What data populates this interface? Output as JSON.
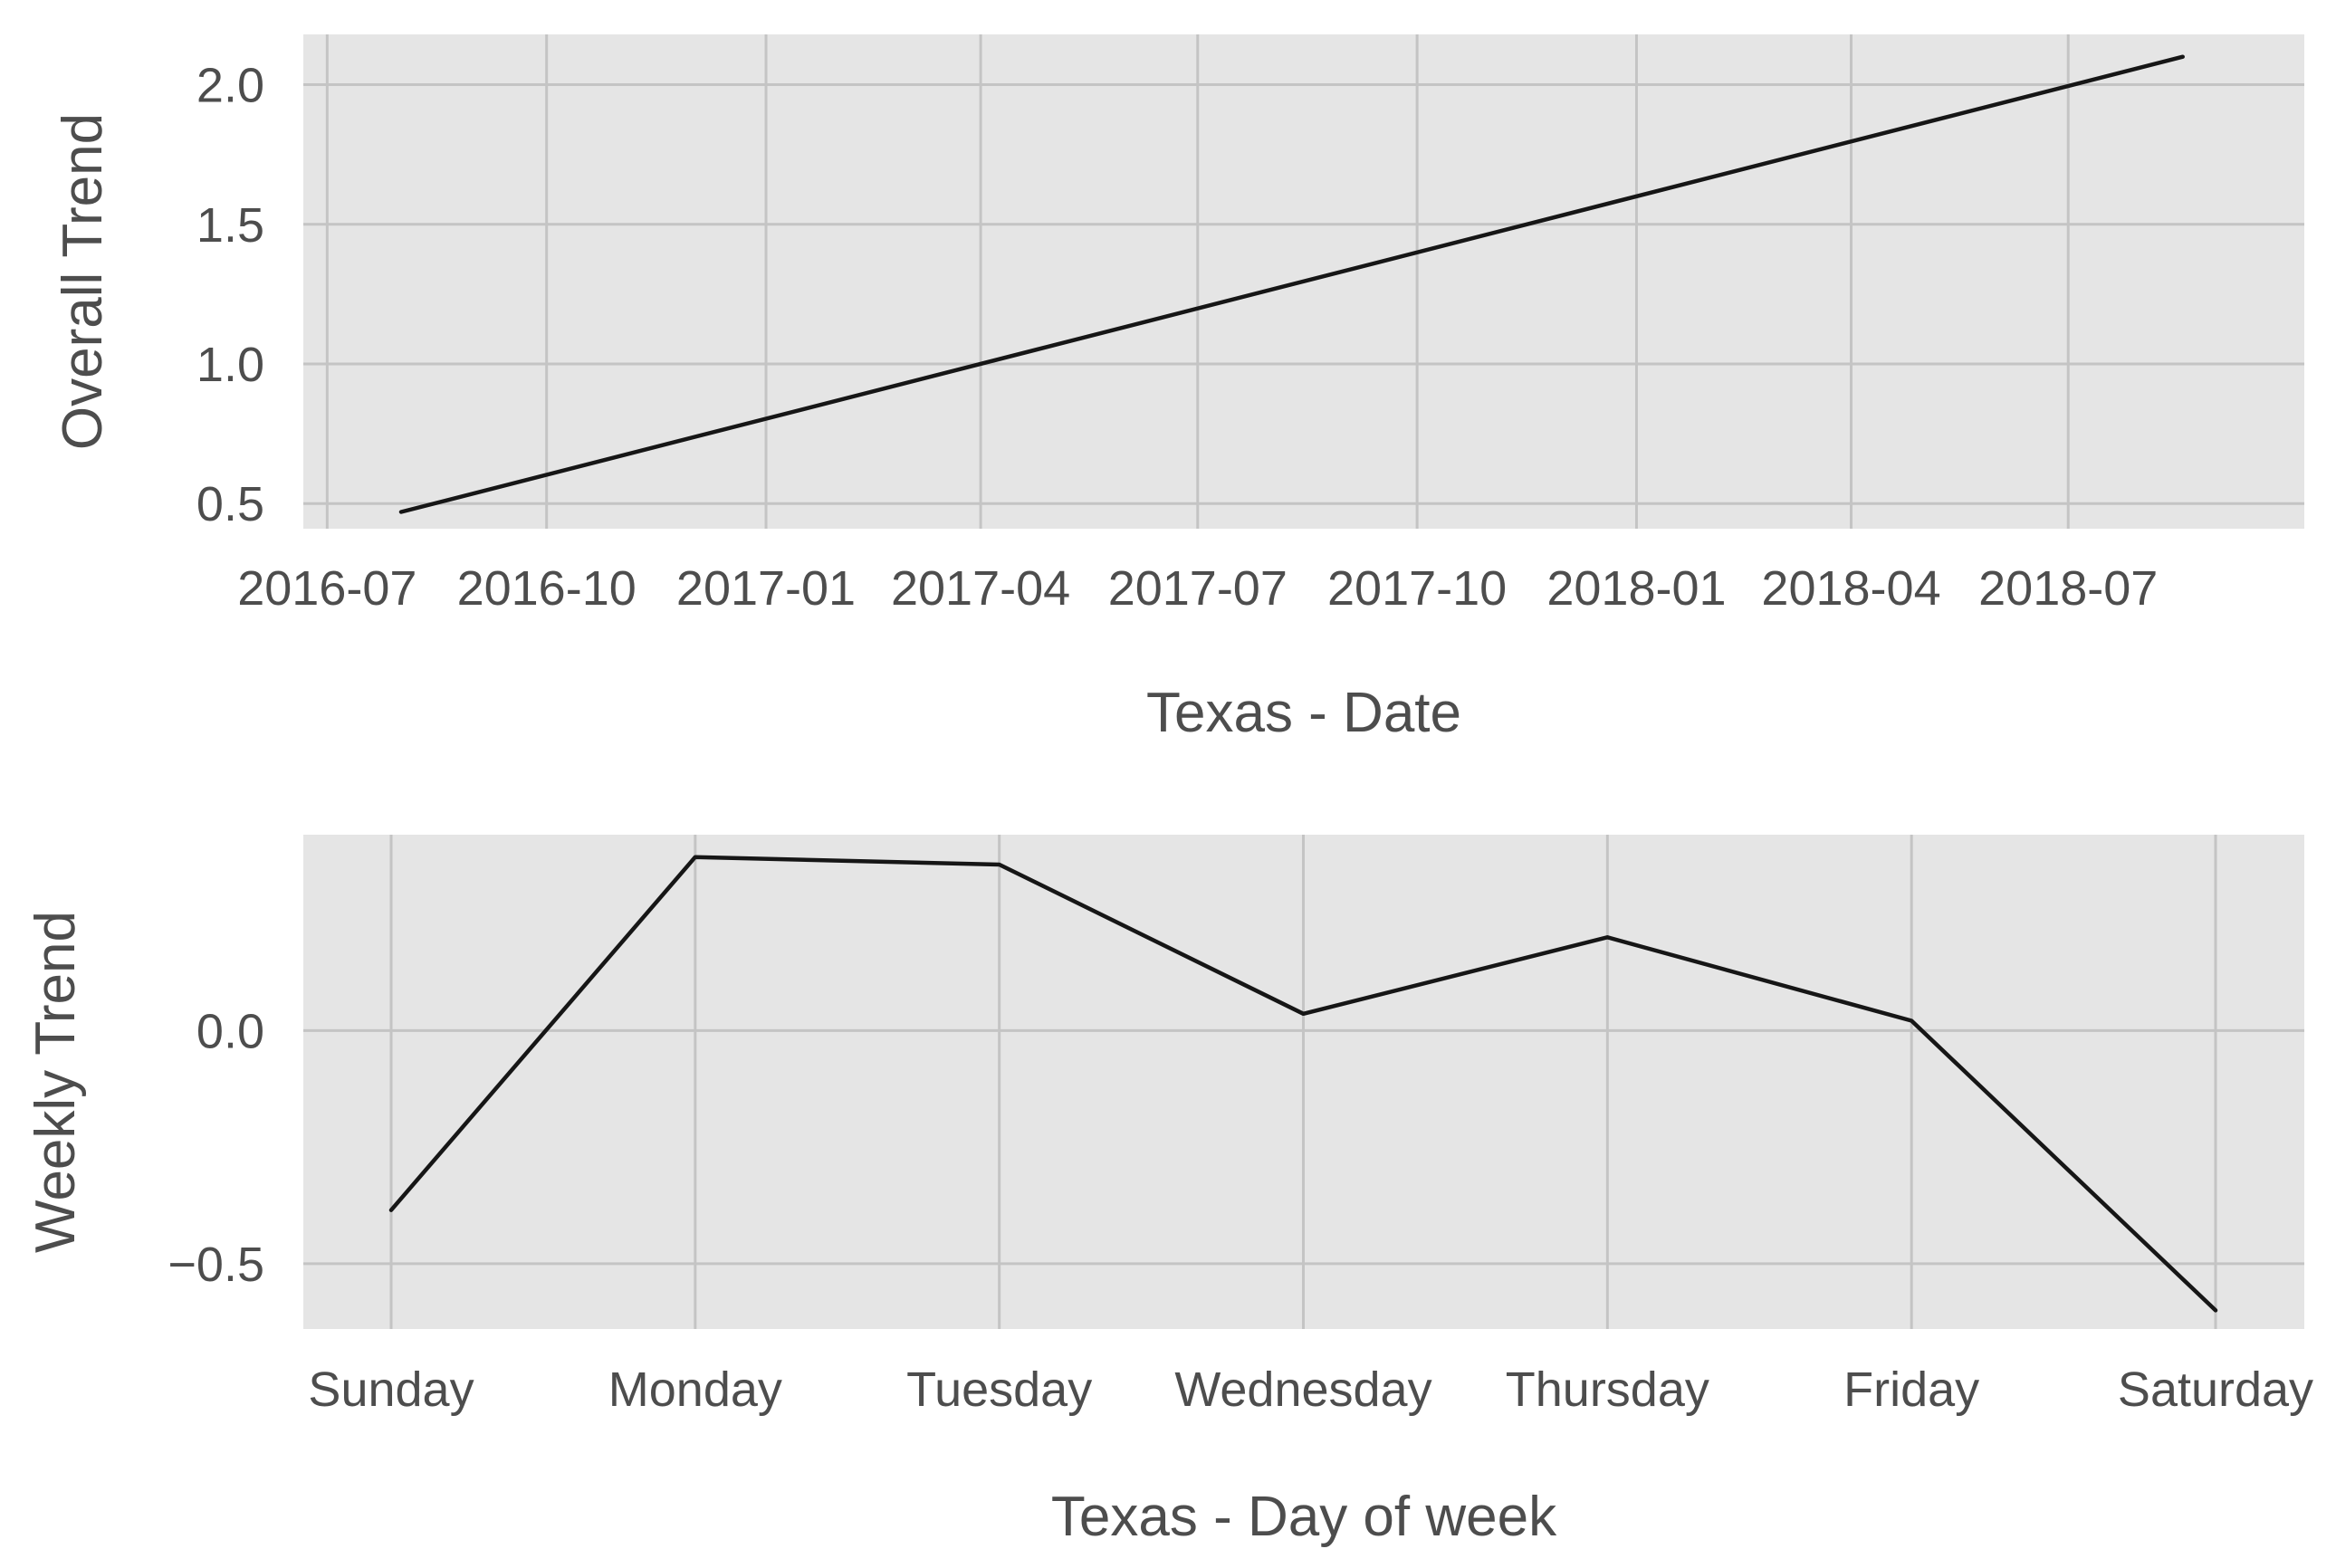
{
  "chart_data": [
    {
      "type": "line",
      "xlabel": "Texas - Date",
      "ylabel": "Overall Trend",
      "x_type": "date",
      "x_ticks": [
        "2016-07",
        "2016-10",
        "2017-01",
        "2017-04",
        "2017-07",
        "2017-10",
        "2018-01",
        "2018-04",
        "2018-07"
      ],
      "y_ticks": [
        "0.5",
        "1.0",
        "1.5",
        "2.0"
      ],
      "xlim": [
        "2016-06-21",
        "2018-10-08"
      ],
      "ylim": [
        0.41,
        2.18
      ],
      "x": [
        "2016-08-01",
        "2018-08-18"
      ],
      "y": [
        0.47,
        2.1
      ],
      "grid": true,
      "line_color": "#161616",
      "background_color": "#e5e5e5",
      "grid_color": "#c4c4c4"
    },
    {
      "type": "line",
      "xlabel": "Texas - Day of week",
      "ylabel": "Weekly Trend",
      "categories": [
        "Sunday",
        "Monday",
        "Tuesday",
        "Wednesday",
        "Thursday",
        "Friday",
        "Saturday"
      ],
      "y_ticks": [
        "0.0",
        "−0.5"
      ],
      "y_tick_values": [
        0.0,
        -0.5
      ],
      "ylim": [
        -0.64,
        0.42
      ],
      "values": [
        -0.385,
        0.372,
        0.356,
        0.036,
        0.2,
        0.021,
        -0.6
      ],
      "grid": true,
      "line_color": "#161616",
      "background_color": "#e5e5e5",
      "grid_color": "#c4c4c4"
    }
  ]
}
